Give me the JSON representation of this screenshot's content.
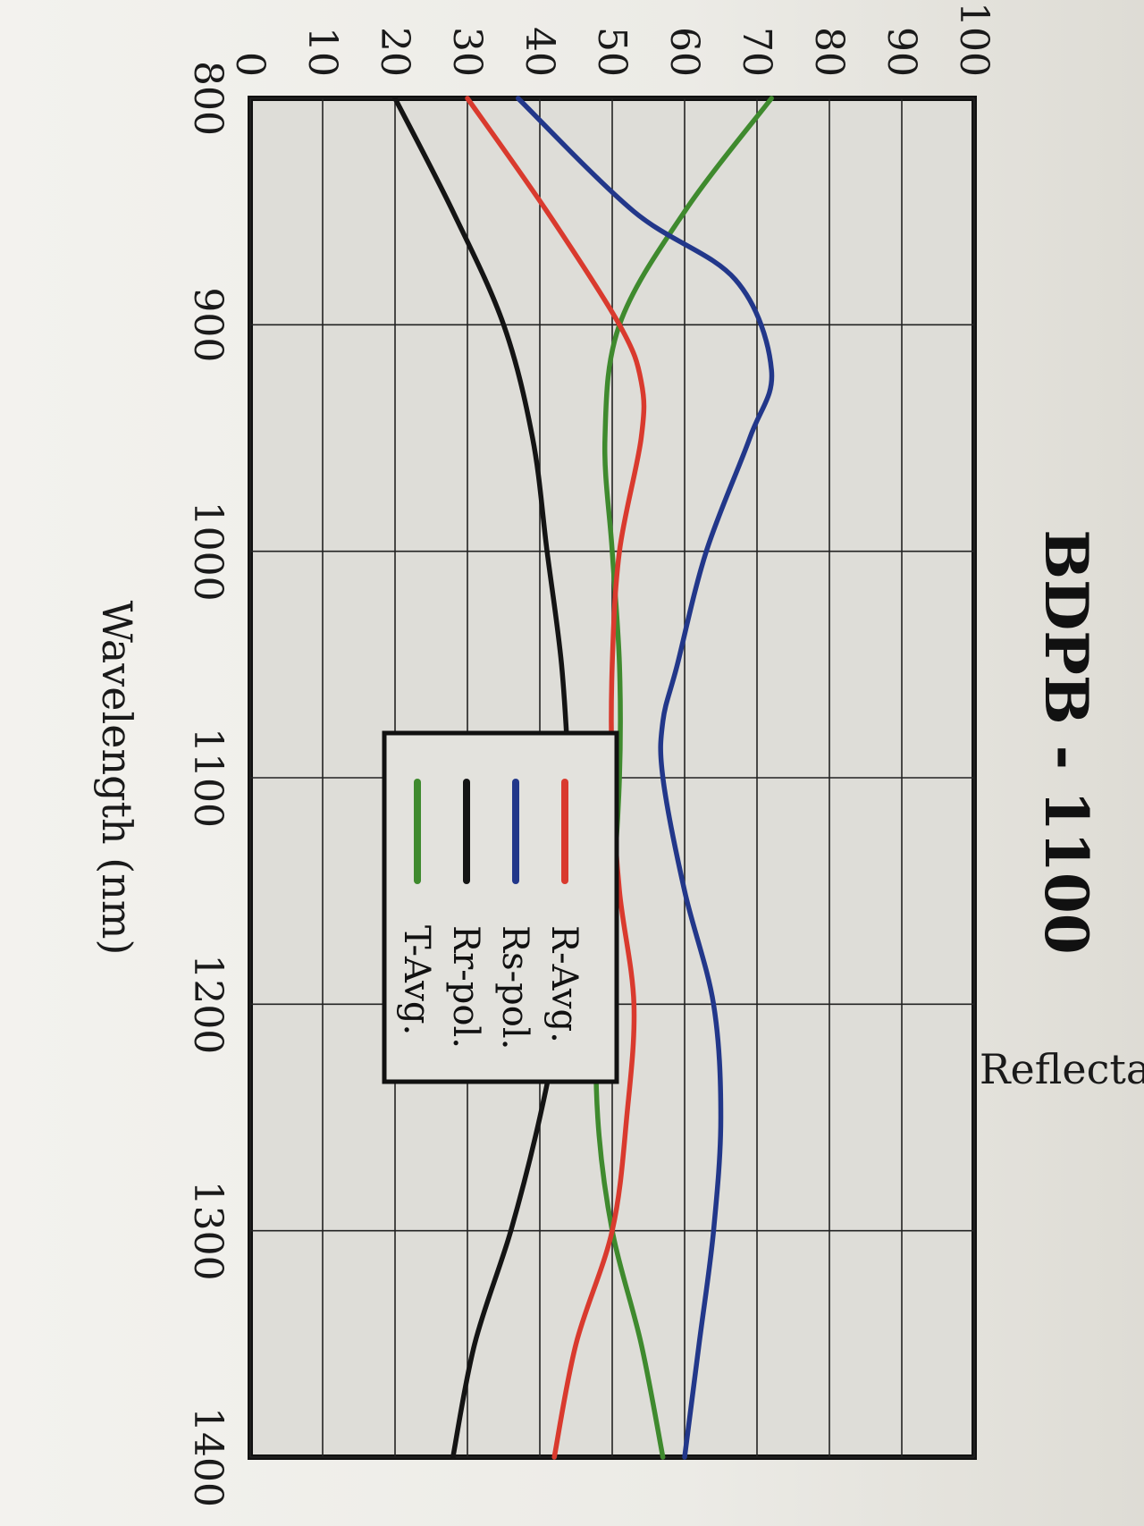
{
  "chart_data": {
    "type": "line",
    "title": "BDPB - 1100",
    "xlabel": "Wavelength (nm)",
    "ylabel": "Reflectance (%)",
    "xlim": [
      800,
      1400
    ],
    "ylim": [
      0,
      100
    ],
    "x_ticks": [
      "800",
      "900",
      "1000",
      "1100",
      "1200",
      "1300",
      "1400"
    ],
    "y_ticks": [
      "0",
      "10",
      "20",
      "30",
      "40",
      "50",
      "60",
      "70",
      "80",
      "90",
      "100"
    ],
    "grid": true,
    "legend_position": "center-left",
    "series": [
      {
        "name": "R-Avg.",
        "color": "#d93a2e",
        "points": [
          [
            800,
            30
          ],
          [
            850,
            41
          ],
          [
            900,
            51
          ],
          [
            925,
            54
          ],
          [
            950,
            54
          ],
          [
            1000,
            51
          ],
          [
            1050,
            50
          ],
          [
            1100,
            50
          ],
          [
            1150,
            51
          ],
          [
            1200,
            53
          ],
          [
            1250,
            52
          ],
          [
            1300,
            50
          ],
          [
            1350,
            45
          ],
          [
            1400,
            42
          ]
        ]
      },
      {
        "name": "Rs-pol.",
        "color": "#22378a",
        "points": [
          [
            800,
            37
          ],
          [
            850,
            53
          ],
          [
            880,
            67
          ],
          [
            920,
            72
          ],
          [
            950,
            69
          ],
          [
            1000,
            63
          ],
          [
            1050,
            59
          ],
          [
            1075,
            57
          ],
          [
            1100,
            57
          ],
          [
            1150,
            60
          ],
          [
            1200,
            64
          ],
          [
            1250,
            65
          ],
          [
            1300,
            64
          ],
          [
            1350,
            62
          ],
          [
            1400,
            60
          ]
        ]
      },
      {
        "name": "Rr-pol.",
        "color": "#141414",
        "points": [
          [
            800,
            20
          ],
          [
            850,
            28
          ],
          [
            900,
            35
          ],
          [
            950,
            39
          ],
          [
            1000,
            41
          ],
          [
            1050,
            43
          ],
          [
            1100,
            44
          ],
          [
            1150,
            44.5
          ],
          [
            1200,
            43
          ],
          [
            1250,
            40
          ],
          [
            1300,
            36
          ],
          [
            1350,
            31
          ],
          [
            1400,
            28
          ]
        ]
      },
      {
        "name": "T-Avg.",
        "color": "#3f8a2e",
        "points": [
          [
            800,
            72
          ],
          [
            850,
            60
          ],
          [
            900,
            51
          ],
          [
            950,
            49
          ],
          [
            1000,
            50
          ],
          [
            1050,
            51
          ],
          [
            1100,
            51
          ],
          [
            1150,
            50
          ],
          [
            1200,
            48
          ],
          [
            1250,
            48
          ],
          [
            1300,
            50
          ],
          [
            1350,
            54
          ],
          [
            1400,
            57
          ]
        ]
      }
    ]
  }
}
